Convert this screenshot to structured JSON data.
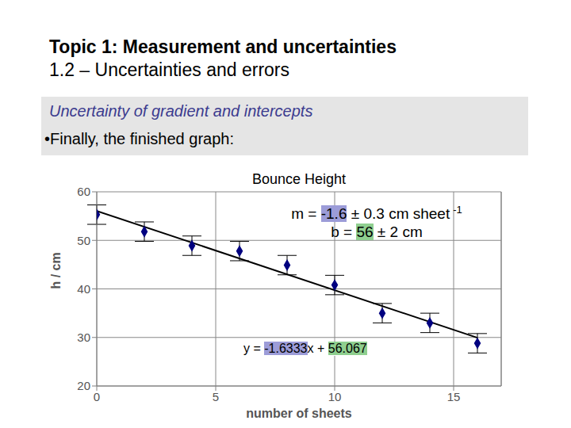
{
  "header": {
    "title": "Topic 1: Measurement and uncertainties",
    "subtitle": "1.2 – Uncertainties and errors"
  },
  "box": {
    "heading": "Uncertainty of gradient and intercepts",
    "bullet": "•Finally, the finished graph:"
  },
  "chart_data": {
    "type": "scatter",
    "title": "Bounce Height",
    "x_label": "number of sheets",
    "y_label": "h / cm",
    "x": [
      0,
      2,
      4,
      6,
      8,
      10,
      12,
      14,
      16
    ],
    "values": [
      55.3,
      51.8,
      48.9,
      47.8,
      44.9,
      40.8,
      35.0,
      33.0,
      28.8
    ],
    "errors": [
      2,
      2,
      2,
      2,
      2,
      2,
      2,
      2,
      2
    ],
    "color": "#000080",
    "marker": "diamond",
    "xlim": [
      0,
      17
    ],
    "xticks": [
      0,
      5,
      10,
      15
    ],
    "ylim": [
      20,
      60
    ],
    "yticks": [
      20,
      30,
      40,
      50,
      60
    ],
    "grid": true,
    "trendline": {
      "slope": -1.6333,
      "intercept": 56.067,
      "label": "y = -1.6333x + 56.067",
      "slope_color": "#9c9cd8",
      "intercept_color": "#8fcf8f"
    },
    "annotations": [
      {
        "text": "m = -1.6 ± 0.3 cm sheet",
        "superscript": "-1",
        "highlight": "-1.6",
        "color": "#9c9cd8"
      },
      {
        "text": "b = 56 ± 2 cm",
        "highlight": "56",
        "color": "#8fcf8f"
      }
    ]
  }
}
